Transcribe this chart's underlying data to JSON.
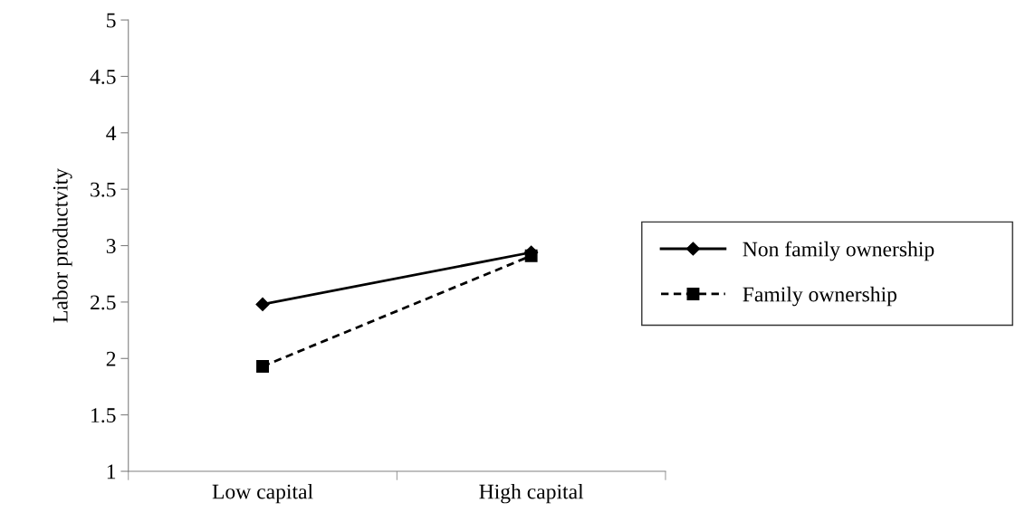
{
  "chart_data": {
    "type": "line",
    "ylabel": "Labor productvity",
    "categories": [
      "Low capital",
      "High capital"
    ],
    "series": [
      {
        "name": "Non family ownership",
        "color": "#000000",
        "values": [
          2.48,
          2.94
        ],
        "marker": "diamond",
        "line_style": "solid"
      },
      {
        "name": "Family ownership",
        "color": "#000000",
        "values": [
          1.93,
          2.91
        ],
        "marker": "square",
        "line_style": "dashed"
      }
    ],
    "ylim": [
      1,
      5
    ],
    "yticks": [
      1,
      1.5,
      2,
      2.5,
      3,
      3.5,
      4,
      4.5,
      5
    ],
    "grid": false,
    "legend": "right"
  }
}
